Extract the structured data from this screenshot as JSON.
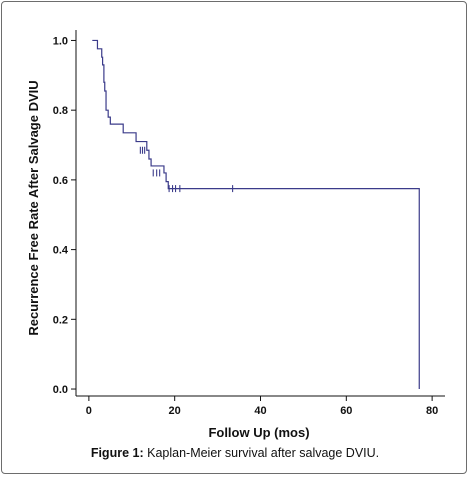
{
  "caption": {
    "label": "Figure 1:",
    "text": "Kaplan-Meier survival after salvage DVIU."
  },
  "chart_data": {
    "type": "line",
    "subtype": "kaplan-meier step curve",
    "xlabel": "Follow Up (mos)",
    "ylabel": "Recurrence Free Rate After Salvage DVIU",
    "xlim": [
      -3,
      83
    ],
    "ylim": [
      -0.02,
      1.03
    ],
    "xticks": [
      0,
      20,
      40,
      60,
      80
    ],
    "yticks": [
      0.0,
      0.2,
      0.4,
      0.6,
      0.8,
      1.0
    ],
    "ytick_labels": [
      "0.0",
      "0.2",
      "0.4",
      "0.6",
      "0.8",
      "1.0"
    ],
    "grid": false,
    "line_color": "#3b3b8a",
    "steps": [
      {
        "t": 0.8,
        "s": 1.0
      },
      {
        "t": 2.0,
        "s": 0.976
      },
      {
        "t": 3.0,
        "s": 0.952
      },
      {
        "t": 3.2,
        "s": 0.93
      },
      {
        "t": 3.5,
        "s": 0.88
      },
      {
        "t": 3.7,
        "s": 0.855
      },
      {
        "t": 4.0,
        "s": 0.8
      },
      {
        "t": 4.5,
        "s": 0.78
      },
      {
        "t": 5.0,
        "s": 0.76
      },
      {
        "t": 8.0,
        "s": 0.735
      },
      {
        "t": 11.0,
        "s": 0.71
      },
      {
        "t": 13.5,
        "s": 0.685
      },
      {
        "t": 14.0,
        "s": 0.66
      },
      {
        "t": 14.5,
        "s": 0.64
      },
      {
        "t": 17.5,
        "s": 0.62
      },
      {
        "t": 18.0,
        "s": 0.595
      },
      {
        "t": 18.5,
        "s": 0.575
      },
      {
        "t": 62.0,
        "s": 0.575
      },
      {
        "t": 77.0,
        "s": 0.287
      }
    ],
    "end": {
      "t": 77.0,
      "s": 0.0
    },
    "censored": [
      {
        "t": 12.0,
        "s": 0.685
      },
      {
        "t": 12.5,
        "s": 0.685
      },
      {
        "t": 13.0,
        "s": 0.685
      },
      {
        "t": 15.0,
        "s": 0.62
      },
      {
        "t": 15.8,
        "s": 0.62
      },
      {
        "t": 16.5,
        "s": 0.62
      },
      {
        "t": 18.7,
        "s": 0.575
      },
      {
        "t": 19.5,
        "s": 0.575
      },
      {
        "t": 20.2,
        "s": 0.575
      },
      {
        "t": 21.2,
        "s": 0.575
      },
      {
        "t": 33.5,
        "s": 0.575
      }
    ]
  }
}
